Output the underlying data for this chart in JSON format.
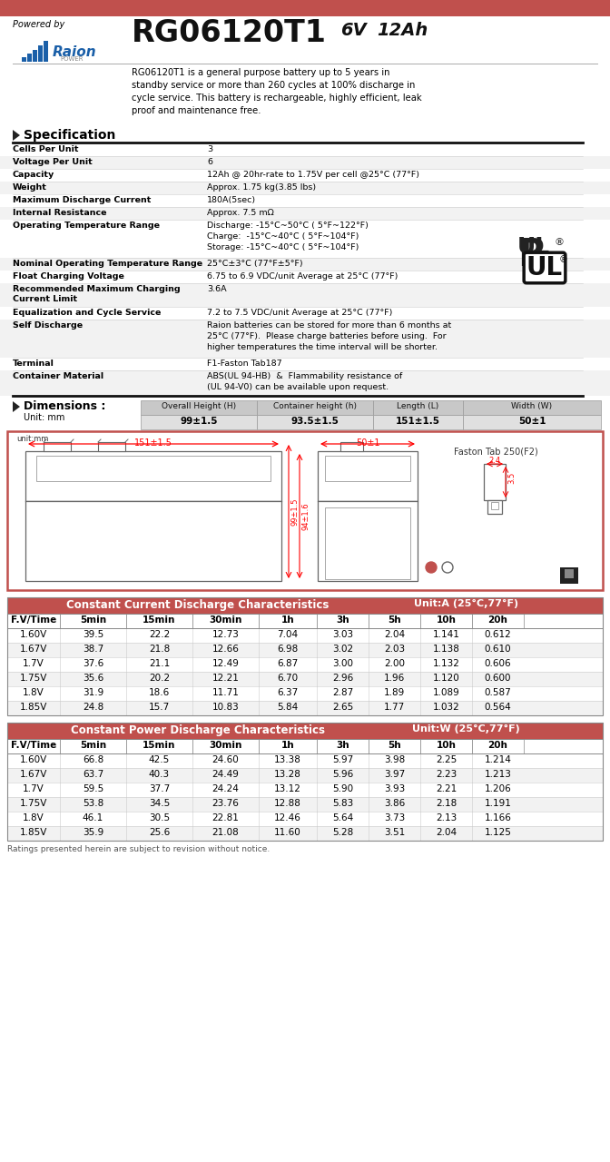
{
  "title_model": "RG06120T1",
  "title_voltage": "6V",
  "title_ah": "12Ah",
  "powered_by": "Powered by",
  "header_bar_color": "#c0504d",
  "description": "RG06120T1 is a general purpose battery up to 5 years in\nstandby service or more than 260 cycles at 100% discharge in\ncycle service. This battery is rechargeable, highly efficient, leak\nproof and maintenance free.",
  "spec_title": "Specification",
  "spec_rows": [
    [
      "Cells Per Unit",
      "3"
    ],
    [
      "Voltage Per Unit",
      "6"
    ],
    [
      "Capacity",
      "12Ah @ 20hr-rate to 1.75V per cell @25°C (77°F)"
    ],
    [
      "Weight",
      "Approx. 1.75 kg(3.85 lbs)"
    ],
    [
      "Maximum Discharge Current",
      "180A(5sec)"
    ],
    [
      "Internal Resistance",
      "Approx. 7.5 mΩ"
    ],
    [
      "Operating Temperature Range",
      "Discharge: -15°C~50°C ( 5°F~122°F)\nCharge:  -15°C~40°C ( 5°F~104°F)\nStorage: -15°C~40°C ( 5°F~104°F)"
    ],
    [
      "Nominal Operating Temperature Range",
      "25°C±3°C (77°F±5°F)"
    ],
    [
      "Float Charging Voltage",
      "6.75 to 6.9 VDC/unit Average at 25°C (77°F)"
    ],
    [
      "Recommended Maximum Charging\nCurrent Limit",
      "3.6A"
    ],
    [
      "Equalization and Cycle Service",
      "7.2 to 7.5 VDC/unit Average at 25°C (77°F)"
    ],
    [
      "Self Discharge",
      "Raion batteries can be stored for more than 6 months at\n25°C (77°F).  Please charge batteries before using.  For\nhigher temperatures the time interval will be shorter."
    ],
    [
      "Terminal",
      "F1-Faston Tab187"
    ],
    [
      "Container Material",
      "ABS(UL 94-HB)  &  Flammability resistance of\n(UL 94-V0) can be available upon request."
    ]
  ],
  "spec_row_heights": [
    14,
    14,
    14,
    14,
    14,
    14,
    42,
    14,
    14,
    26,
    14,
    42,
    14,
    28
  ],
  "dim_title": "Dimensions :",
  "dim_unit": "Unit: mm",
  "dim_headers": [
    "Overall Height (H)",
    "Container height (h)",
    "Length (L)",
    "Width (W)"
  ],
  "dim_values": [
    "99±1.5",
    "93.5±1.5",
    "151±1.5",
    "50±1"
  ],
  "dim_header_bg": "#c8c8c8",
  "dim_value_bg": "#e0e0e0",
  "discharge_title": "Constant Current Discharge Characteristics",
  "discharge_unit": "Unit:A (25°C,77°F)",
  "discharge_bg": "#c0504d",
  "discharge_headers": [
    "F.V/Time",
    "5min",
    "15min",
    "30min",
    "1h",
    "3h",
    "5h",
    "10h",
    "20h"
  ],
  "discharge_data": [
    [
      "1.60V",
      "39.5",
      "22.2",
      "12.73",
      "7.04",
      "3.03",
      "2.04",
      "1.141",
      "0.612"
    ],
    [
      "1.67V",
      "38.7",
      "21.8",
      "12.66",
      "6.98",
      "3.02",
      "2.03",
      "1.138",
      "0.610"
    ],
    [
      "1.7V",
      "37.6",
      "21.1",
      "12.49",
      "6.87",
      "3.00",
      "2.00",
      "1.132",
      "0.606"
    ],
    [
      "1.75V",
      "35.6",
      "20.2",
      "12.21",
      "6.70",
      "2.96",
      "1.96",
      "1.120",
      "0.600"
    ],
    [
      "1.8V",
      "31.9",
      "18.6",
      "11.71",
      "6.37",
      "2.87",
      "1.89",
      "1.089",
      "0.587"
    ],
    [
      "1.85V",
      "24.8",
      "15.7",
      "10.83",
      "5.84",
      "2.65",
      "1.77",
      "1.032",
      "0.564"
    ]
  ],
  "power_title": "Constant Power Discharge Characteristics",
  "power_unit": "Unit:W (25°C,77°F)",
  "power_bg": "#c0504d",
  "power_headers": [
    "F.V/Time",
    "5min",
    "15min",
    "30min",
    "1h",
    "3h",
    "5h",
    "10h",
    "20h"
  ],
  "power_data": [
    [
      "1.60V",
      "66.8",
      "42.5",
      "24.60",
      "13.38",
      "5.97",
      "3.98",
      "2.25",
      "1.214"
    ],
    [
      "1.67V",
      "63.7",
      "40.3",
      "24.49",
      "13.28",
      "5.96",
      "3.97",
      "2.23",
      "1.213"
    ],
    [
      "1.7V",
      "59.5",
      "37.7",
      "24.24",
      "13.12",
      "5.90",
      "3.93",
      "2.21",
      "1.206"
    ],
    [
      "1.75V",
      "53.8",
      "34.5",
      "23.76",
      "12.88",
      "5.83",
      "3.86",
      "2.18",
      "1.191"
    ],
    [
      "1.8V",
      "46.1",
      "30.5",
      "22.81",
      "12.46",
      "5.64",
      "3.73",
      "2.13",
      "1.166"
    ],
    [
      "1.85V",
      "35.9",
      "25.6",
      "21.08",
      "11.60",
      "5.28",
      "3.51",
      "2.04",
      "1.125"
    ]
  ],
  "footer": "Ratings presented herein are subject to revision without notice.",
  "bg_white": "#ffffff",
  "row_even": "#ffffff",
  "row_odd": "#f2f2f2",
  "tbl_col_bg": "#e8edf5",
  "diagram_border": "#c0504d"
}
